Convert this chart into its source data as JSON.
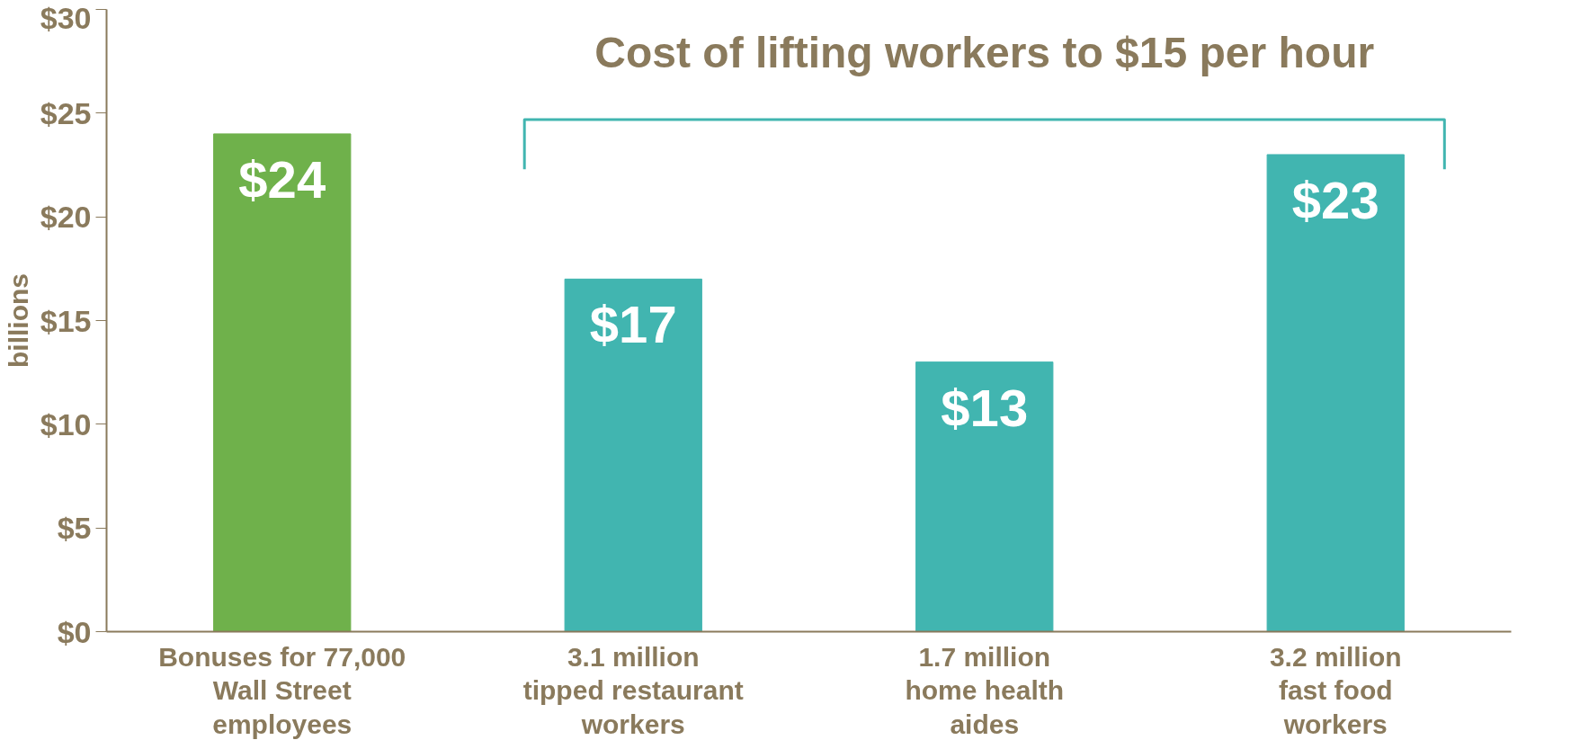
{
  "chart_data": {
    "type": "bar",
    "ylabel": "billions",
    "categories": [
      "Bonuses for 77,000\nWall Street\nemployees",
      "3.1 million\ntipped restaurant\nworkers",
      "1.7 million\nhome health\naides",
      "3.2 million\nfast food\nworkers"
    ],
    "values": [
      24,
      17,
      13,
      23
    ],
    "colors": [
      "#6fb14b",
      "#41b5b0",
      "#41b5b0",
      "#41b5b0"
    ],
    "value_labels": [
      "$24",
      "$17",
      "$13",
      "$23"
    ],
    "ylim": [
      0,
      30
    ],
    "yticks": [
      {
        "value": 0,
        "label": "$0"
      },
      {
        "value": 5,
        "label": "$5"
      },
      {
        "value": 10,
        "label": "$10"
      },
      {
        "value": 15,
        "label": "$15"
      },
      {
        "value": 20,
        "label": "$20"
      },
      {
        "value": 25,
        "label": "$25"
      },
      {
        "value": 30,
        "label": "$30"
      }
    ],
    "annotations": [
      "Cost of lifting workers to $15 per hour"
    ],
    "grid": false
  }
}
